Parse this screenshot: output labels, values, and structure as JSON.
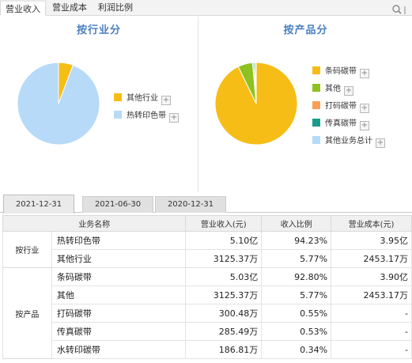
{
  "top_tabs": [
    "营业收入",
    "营业成本",
    "利润比例"
  ],
  "panels": {
    "left": {
      "title": "按行业分",
      "legend": [
        {
          "label": "其他行业",
          "color": "#f6bd16"
        },
        {
          "label": "热转印色带",
          "color": "#b6daf8"
        }
      ],
      "pie": [
        {
          "label": "其他行业",
          "value": 5.77,
          "color": "#f6bd16"
        },
        {
          "label": "热转印色带",
          "value": 94.23,
          "color": "#b6daf8"
        }
      ]
    },
    "right": {
      "title": "按产品分",
      "legend": [
        {
          "label": "条码碳带",
          "color": "#f6bd16"
        },
        {
          "label": "其他",
          "color": "#8ec220"
        },
        {
          "label": "打码碳带",
          "color": "#f99e55"
        },
        {
          "label": "传真碳带",
          "color": "#1b9c8a"
        },
        {
          "label": "其他业务总计",
          "color": "#b6daf8"
        }
      ],
      "pie": [
        {
          "label": "条码碳带",
          "value": 92.8,
          "color": "#f6bd16"
        },
        {
          "label": "其他",
          "value": 5.77,
          "color": "#8ec220"
        },
        {
          "label": "打码碳带",
          "value": 0.55,
          "color": "#f99e55"
        },
        {
          "label": "传真碳带",
          "value": 0.53,
          "color": "#1b9c8a"
        },
        {
          "label": "其他业务总计",
          "value": 0.35,
          "color": "#b6daf8"
        }
      ]
    }
  },
  "date_tabs": [
    "2021-12-31",
    "2021-06-30",
    "2020-12-31"
  ],
  "table": {
    "headers": [
      "业务名称",
      "营业收入(元)",
      "收入比例",
      "营业成本(元)"
    ],
    "groups": [
      {
        "name": "按行业",
        "rows": [
          [
            "热转印色带",
            "5.10亿",
            "94.23%",
            "3.95亿"
          ],
          [
            "其他行业",
            "3125.37万",
            "5.77%",
            "2453.17万"
          ]
        ]
      },
      {
        "name": "按产品",
        "rows": [
          [
            "条码碳带",
            "5.03亿",
            "92.80%",
            "3.90亿"
          ],
          [
            "其他",
            "3125.37万",
            "5.77%",
            "2453.17万"
          ],
          [
            "打码碳带",
            "300.48万",
            "0.55%",
            "-"
          ],
          [
            "传真碳带",
            "285.49万",
            "0.53%",
            "-"
          ],
          [
            "水转印碳带",
            "186.81万",
            "0.34%",
            "-"
          ]
        ]
      }
    ]
  }
}
